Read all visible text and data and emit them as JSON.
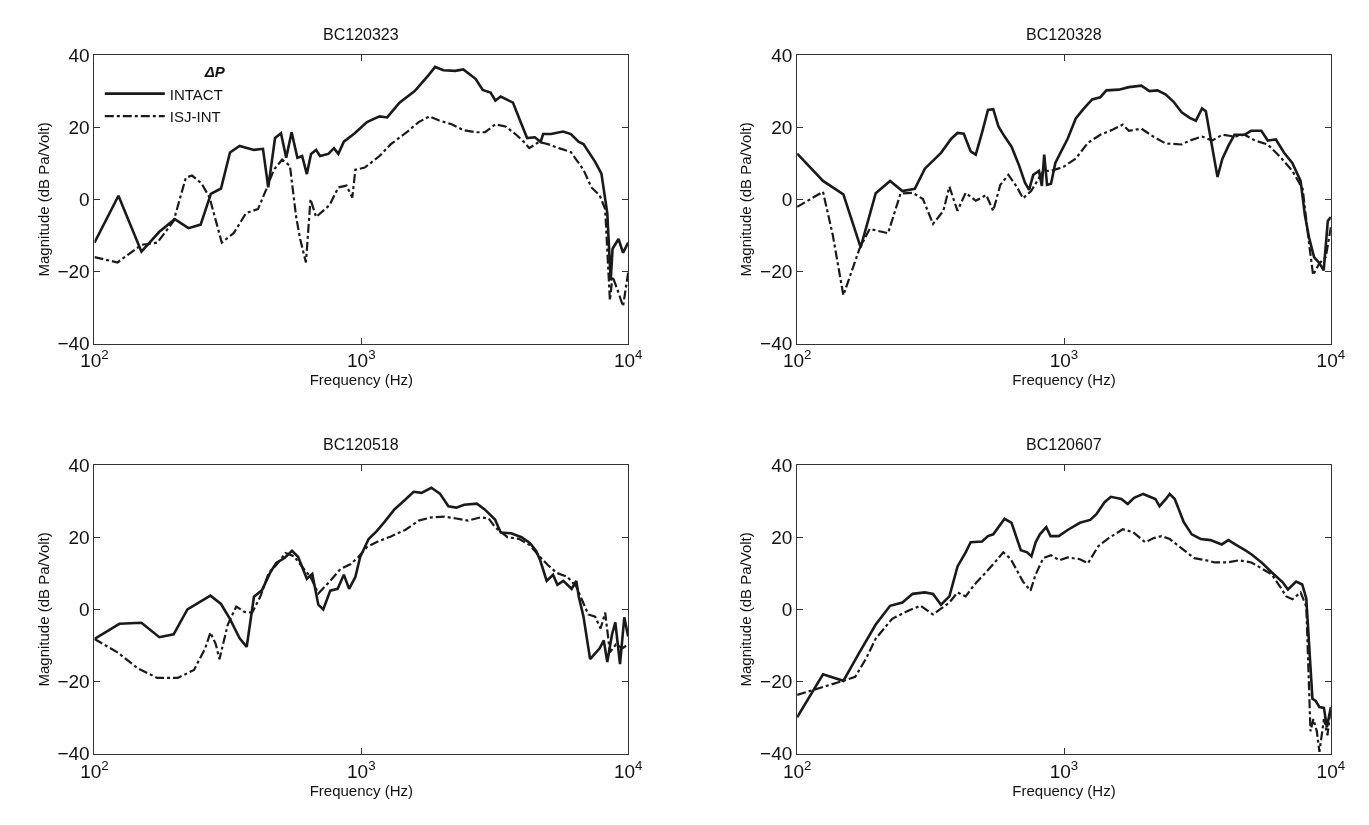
{
  "chart_data": [
    {
      "type": "line",
      "title": "BC120323",
      "xlabel": "Frequency (Hz)",
      "ylabel": "Magnitude (dB Pa/Volt)",
      "log": "x",
      "xlim": [
        100,
        10000
      ],
      "ylim": [
        -40,
        40
      ],
      "xticks": [
        {
          "value": 100,
          "label": "10$^{2}$"
        },
        {
          "value": 1000,
          "label": "10$^{3}$"
        },
        {
          "value": 10000,
          "label": "10$^{4}$"
        }
      ],
      "yticks": [
        -40,
        -20,
        0,
        20,
        40
      ],
      "legend": "top left",
      "legend_title": "ΔP",
      "series": [
        {
          "name": "INTACT",
          "color": "#1a1a1a",
          "line_style": "solid",
          "x": [
            100,
            123,
            150,
            175,
            200,
            225,
            250,
            273,
            298,
            322,
            350,
            396,
            428,
            448,
            475,
            500,
            523,
            548,
            576,
            600,
            625,
            648,
            677,
            700,
            752,
            790,
            820,
            860,
            945,
            1050,
            1170,
            1250,
            1390,
            1585,
            1790,
            1890,
            2030,
            2250,
            2410,
            2680,
            2850,
            3050,
            3180,
            3330,
            3700,
            3930,
            4180,
            4470,
            4700,
            4800,
            5140,
            5700,
            6100,
            6530,
            6800,
            7520,
            7940,
            8350,
            8600,
            8740,
            9200,
            9570,
            10000
          ],
          "values": [
            -12,
            1,
            -14.5,
            -9,
            -5.5,
            -8,
            -7,
            1.5,
            3,
            13,
            14.8,
            13.7,
            14,
            3.3,
            17,
            18.3,
            11.5,
            18.6,
            11.5,
            12,
            7,
            12.6,
            13.7,
            12,
            12.6,
            14.2,
            12.6,
            16,
            18.3,
            21.4,
            23,
            22.7,
            26.8,
            30,
            34.5,
            36.7,
            35.8,
            35.6,
            36,
            33.4,
            30.3,
            29.6,
            27.4,
            28.5,
            26.8,
            21.9,
            17,
            17.2,
            15.9,
            18.1,
            18.1,
            18.8,
            18.1,
            15.9,
            15.3,
            10.4,
            7.1,
            -3.8,
            -22.5,
            -13.7,
            -11,
            -14.8,
            -12
          ]
        },
        {
          "name": "ISJ-INT",
          "color": "#1a1a1a",
          "line_style": "dashdot",
          "x": [
            100,
            122,
            150,
            172,
            198,
            220,
            232,
            252,
            270,
            300,
            333,
            370,
            410,
            440,
            470,
            505,
            540,
            570,
            590,
            620,
            645,
            677,
            760,
            820,
            880,
            925,
            950,
            1030,
            1170,
            1290,
            1480,
            1640,
            1800,
            1950,
            2180,
            2410,
            2680,
            2910,
            3180,
            3470,
            3780,
            4070,
            4260,
            4630,
            5000,
            5500,
            6100,
            6800,
            7280,
            7820,
            8200,
            8540,
            8740,
            9080,
            9570,
            10000
          ],
          "values": [
            -16,
            -17.5,
            -12.6,
            -12,
            -6,
            6,
            6.6,
            4.4,
            0.5,
            -12,
            -9.3,
            -3.8,
            -2.7,
            2.7,
            8.2,
            11,
            9.3,
            -4.9,
            -11,
            -17.5,
            0,
            -4.9,
            -1.6,
            3.3,
            3.8,
            0.5,
            8.2,
            8.8,
            12,
            15.3,
            18.6,
            21.4,
            23,
            21.9,
            20.8,
            19.2,
            18.6,
            18.6,
            20.8,
            20.2,
            18.1,
            15.9,
            14.2,
            15.9,
            15.3,
            14.2,
            13.1,
            8.2,
            3.3,
            1.1,
            -2.7,
            -28,
            -21.4,
            -24.7,
            -29.6,
            -20.3
          ]
        }
      ]
    },
    {
      "type": "line",
      "title": "BC120328",
      "xlabel": "Frequency (Hz)",
      "ylabel": "Magnitude (dB Pa/Volt)",
      "log": "x",
      "xlim": [
        100,
        10000
      ],
      "ylim": [
        -40,
        40
      ],
      "xticks": [
        {
          "value": 100,
          "label": "10$^{2}$"
        },
        {
          "value": 1000,
          "label": "10$^{3}$"
        },
        {
          "value": 10000,
          "label": "10$^{4}$"
        }
      ],
      "yticks": [
        -40,
        -20,
        0,
        20,
        40
      ],
      "series": [
        {
          "color": "#1a1a1a",
          "line_style": "solid",
          "x": [
            100,
            125,
            149,
            173,
            197,
            223,
            248,
            276,
            301,
            346,
            378,
            399,
            421,
            447,
            467,
            493,
            519,
            543,
            568,
            599,
            636,
            677,
            714,
            740,
            767,
            806,
            826,
            843,
            864,
            894,
            928,
            962,
            1032,
            1107,
            1188,
            1275,
            1368,
            1442,
            1605,
            1750,
            1950,
            2090,
            2240,
            2400,
            2570,
            2760,
            2960,
            3120,
            3290,
            3400,
            3590,
            3760,
            3920,
            4130,
            4350,
            4750,
            5020,
            5490,
            5800,
            6220,
            6680,
            7170,
            7700,
            7990,
            8280,
            8650,
            9060,
            9400,
            9740,
            10000
          ],
          "values": [
            12.7,
            5.1,
            1.4,
            -13.3,
            1.7,
            5.1,
            2.3,
            2.9,
            8.5,
            12.9,
            16.8,
            18.4,
            18.2,
            13.3,
            12.4,
            18.5,
            24.8,
            25,
            20.2,
            17.4,
            14.6,
            9.6,
            4.6,
            2.6,
            6.8,
            7.9,
            3.7,
            12.4,
            4,
            4.3,
            10.1,
            12.4,
            16.8,
            22.4,
            25.2,
            27.7,
            28.3,
            30.2,
            30.4,
            31.1,
            31.5,
            30,
            30.2,
            29.1,
            27.1,
            24.1,
            22.6,
            21.8,
            25.2,
            24.4,
            14.6,
            6.2,
            11.2,
            14.8,
            17.9,
            17.9,
            19,
            19,
            16.3,
            16.6,
            12.9,
            10.1,
            5.1,
            -4.3,
            -10.5,
            -16,
            -17.7,
            -19.7,
            -6,
            -4.9
          ]
        },
        {
          "color": "#1a1a1a",
          "line_style": "dashdot",
          "x": [
            100,
            125,
            136,
            149,
            171,
            187,
            219,
            244,
            271,
            296,
            323,
            353,
            372,
            399,
            428,
            467,
            511,
            543,
            577,
            619,
            665,
            702,
            753,
            836,
            894,
            996,
            1107,
            1230,
            1368,
            1520,
            1660,
            1750,
            1950,
            2160,
            2400,
            2760,
            2960,
            3290,
            3590,
            3920,
            4350,
            4750,
            5200,
            5800,
            6450,
            7170,
            7840,
            8280,
            8580,
            9060,
            9570,
            10000
          ],
          "values": [
            -2.1,
            2.1,
            -9.9,
            -26.6,
            -13.8,
            -8.2,
            -9.4,
            1.6,
            1.8,
            0.1,
            -6.8,
            -3.2,
            3.5,
            -3.2,
            1.8,
            -0.4,
            1.2,
            -3.2,
            4,
            6.8,
            3.5,
            0.3,
            2.3,
            7.9,
            7.9,
            9,
            11.3,
            15.7,
            17.9,
            19.3,
            20.7,
            19,
            19.6,
            17.4,
            15.5,
            15.2,
            16.3,
            17.4,
            16.3,
            17.9,
            17.4,
            17.9,
            16.3,
            15.2,
            11.8,
            7.9,
            2.9,
            -12.1,
            -21,
            -17.7,
            -16,
            -7.7
          ]
        }
      ]
    },
    {
      "type": "line",
      "title": "BC120518",
      "xlabel": "Frequency (Hz)",
      "ylabel": "Magnitude (dB Pa/Volt)",
      "log": "x",
      "xlim": [
        100,
        10000
      ],
      "ylim": [
        -40,
        40
      ],
      "xticks": [
        {
          "value": 100,
          "label": "10$^{2}$"
        },
        {
          "value": 1000,
          "label": "10$^{3}$"
        },
        {
          "value": 10000,
          "label": "10$^{4}$"
        }
      ],
      "yticks": [
        -40,
        -20,
        0,
        20,
        40
      ],
      "series": [
        {
          "color": "#1a1a1a",
          "line_style": "solid",
          "x": [
            100,
            124,
            150,
            175,
            198,
            223,
            253,
            272,
            298,
            321,
            350,
            372,
            396,
            425,
            455,
            480,
            517,
            550,
            580,
            625,
            655,
            690,
            720,
            765,
            815,
            860,
            900,
            950,
            990,
            1065,
            1140,
            1220,
            1330,
            1460,
            1570,
            1680,
            1830,
            1970,
            2120,
            2270,
            2430,
            2710,
            2900,
            3170,
            3330,
            3640,
            3985,
            4280,
            4520,
            4680,
            4950,
            5230,
            5430,
            5710,
            6140,
            6390,
            6530,
            6800,
            7200,
            7820,
            8100,
            8350,
            8700,
            8950,
            9320,
            9670,
            10000
          ],
          "values": [
            -8.2,
            -4,
            -3.7,
            -7.7,
            -6.9,
            0,
            2.4,
            3.8,
            1.5,
            -2.5,
            -8,
            -10.4,
            3.5,
            5.4,
            10.1,
            12.9,
            14.3,
            16.2,
            14.5,
            8.5,
            9.8,
            1.3,
            0,
            5.2,
            5.7,
            9.6,
            5.7,
            9,
            14.5,
            19.5,
            21.6,
            24.2,
            27.7,
            30.4,
            32.6,
            32.3,
            33.7,
            32.1,
            28.6,
            28.2,
            29,
            29.3,
            27.7,
            24.9,
            21.3,
            21.1,
            20,
            18.4,
            16.2,
            13.6,
            7.9,
            9.6,
            6.8,
            7.9,
            5.7,
            7.9,
            3.5,
            -2,
            -13.8,
            -10.8,
            -8.6,
            -14.6,
            -6.9,
            -3.6,
            -15.2,
            -2.2,
            -7.5
          ]
        },
        {
          "color": "#1a1a1a",
          "line_style": "dashdot",
          "x": [
            100,
            122,
            145,
            172,
            205,
            236,
            260,
            272,
            285,
            294,
            316,
            340,
            365,
            390,
            418,
            450,
            480,
            520,
            560,
            600,
            645,
            690,
            765,
            835,
            910,
            975,
            1050,
            1160,
            1290,
            1460,
            1640,
            1830,
            2050,
            2270,
            2510,
            2800,
            3000,
            3160,
            3530,
            3910,
            4280,
            4680,
            5000,
            5400,
            5920,
            6390,
            6680,
            7090,
            7520,
            7880,
            8200,
            8540,
            9000,
            9500,
            10000
          ],
          "values": [
            -8.2,
            -11.9,
            -16.3,
            -19,
            -19,
            -16.8,
            -10.8,
            -6.4,
            -9.7,
            -13.8,
            -4.2,
            0.8,
            -0.7,
            -0.9,
            3.5,
            10.1,
            12.3,
            15.6,
            14.7,
            11.8,
            9,
            4.4,
            7.9,
            11.2,
            12.5,
            14.5,
            17.3,
            18.9,
            20.2,
            22,
            24.6,
            25.5,
            25.7,
            25.2,
            24.6,
            25.5,
            25.2,
            22.9,
            20,
            19.5,
            17.8,
            14.5,
            12.3,
            10.1,
            9,
            6.3,
            3,
            -1.4,
            -2,
            -5.3,
            -0.9,
            -11.9,
            -9.7,
            -10.8,
            -9.7
          ]
        }
      ]
    },
    {
      "type": "line",
      "title": "BC120607",
      "xlabel": "Frequency (Hz)",
      "ylabel": "Magnitude (dB Pa/Volt)",
      "log": "x",
      "xlim": [
        100,
        10000
      ],
      "ylim": [
        -40,
        40
      ],
      "xticks": [
        {
          "value": 100,
          "label": "10$^{2}$"
        },
        {
          "value": 1000,
          "label": "10$^{3}$"
        },
        {
          "value": 10000,
          "label": "10$^{4}$"
        }
      ],
      "yticks": [
        -40,
        -20,
        0,
        20,
        40
      ],
      "series": [
        {
          "color": "#1a1a1a",
          "line_style": "solid",
          "x": [
            100,
            125,
            149,
            171,
            197,
            223,
            248,
            271,
            301,
            323,
            346,
            372,
            399,
            428,
            447,
            493,
            519,
            543,
            599,
            636,
            689,
            728,
            755,
            783,
            812,
            858,
            890,
            955,
            1032,
            1147,
            1253,
            1320,
            1419,
            1498,
            1640,
            1733,
            1831,
            1980,
            2200,
            2280,
            2410,
            2490,
            2600,
            2810,
            3010,
            3250,
            3540,
            3900,
            4130,
            4430,
            4770,
            5035,
            5500,
            6000,
            6600,
            6905,
            7410,
            7810,
            8090,
            8530,
            8780,
            9060,
            9420,
            9660,
            10000
          ],
          "values": [
            -29.9,
            -18,
            -19.8,
            -12,
            -4.2,
            1,
            1.9,
            4.3,
            4.7,
            4.3,
            1.3,
            3.6,
            11.9,
            15.8,
            18.6,
            18.8,
            20.3,
            20.8,
            25.1,
            24,
            16.4,
            15.8,
            14.7,
            18.6,
            20.8,
            22.8,
            20.3,
            20.3,
            22,
            24,
            24.8,
            26.3,
            29.7,
            31.2,
            30.6,
            29.2,
            30.9,
            32,
            30.6,
            28.6,
            30.6,
            32,
            30.6,
            24.2,
            20.8,
            19.5,
            19.2,
            18,
            19.2,
            17.8,
            16.4,
            15.3,
            13,
            10.3,
            7.5,
            5.5,
            7.7,
            6.9,
            3,
            -24.8,
            -25.4,
            -27.1,
            -27.3,
            -32.7,
            -27.1
          ]
        },
        {
          "color": "#1a1a1a",
          "line_style": "dashdot",
          "x": [
            100,
            125,
            149,
            165,
            181,
            197,
            227,
            262,
            290,
            323,
            346,
            372,
            399,
            428,
            462,
            493,
            547,
            592,
            631,
            702,
            749,
            783,
            836,
            894,
            962,
            1032,
            1147,
            1230,
            1344,
            1467,
            1660,
            1814,
            2015,
            2160,
            2320,
            2490,
            2760,
            3080,
            3420,
            3670,
            4070,
            4530,
            5035,
            5400,
            6000,
            6440,
            6805,
            7180,
            7700,
            8090,
            8390,
            8600,
            8860,
            9060,
            9420,
            9710,
            10000
          ],
          "values": [
            -23.7,
            -21.5,
            -19.8,
            -18.7,
            -13.7,
            -8.1,
            -2.6,
            -0.3,
            1,
            -1.4,
            0.2,
            1.9,
            4.7,
            3.6,
            6.9,
            9.1,
            12.8,
            15.8,
            14,
            7.7,
            5.2,
            9.7,
            14.2,
            15,
            13.6,
            14.4,
            13.9,
            12.8,
            17.5,
            19.7,
            22.2,
            21.4,
            18.6,
            19.7,
            20.3,
            19.5,
            16.9,
            14.2,
            13.6,
            13,
            13,
            13.6,
            13,
            11.7,
            9.7,
            6.4,
            3.6,
            2.8,
            4.7,
            0.8,
            -33.8,
            -30.4,
            -33.8,
            -39.5,
            -30.4,
            -34.9,
            -27.1
          ]
        }
      ]
    }
  ]
}
